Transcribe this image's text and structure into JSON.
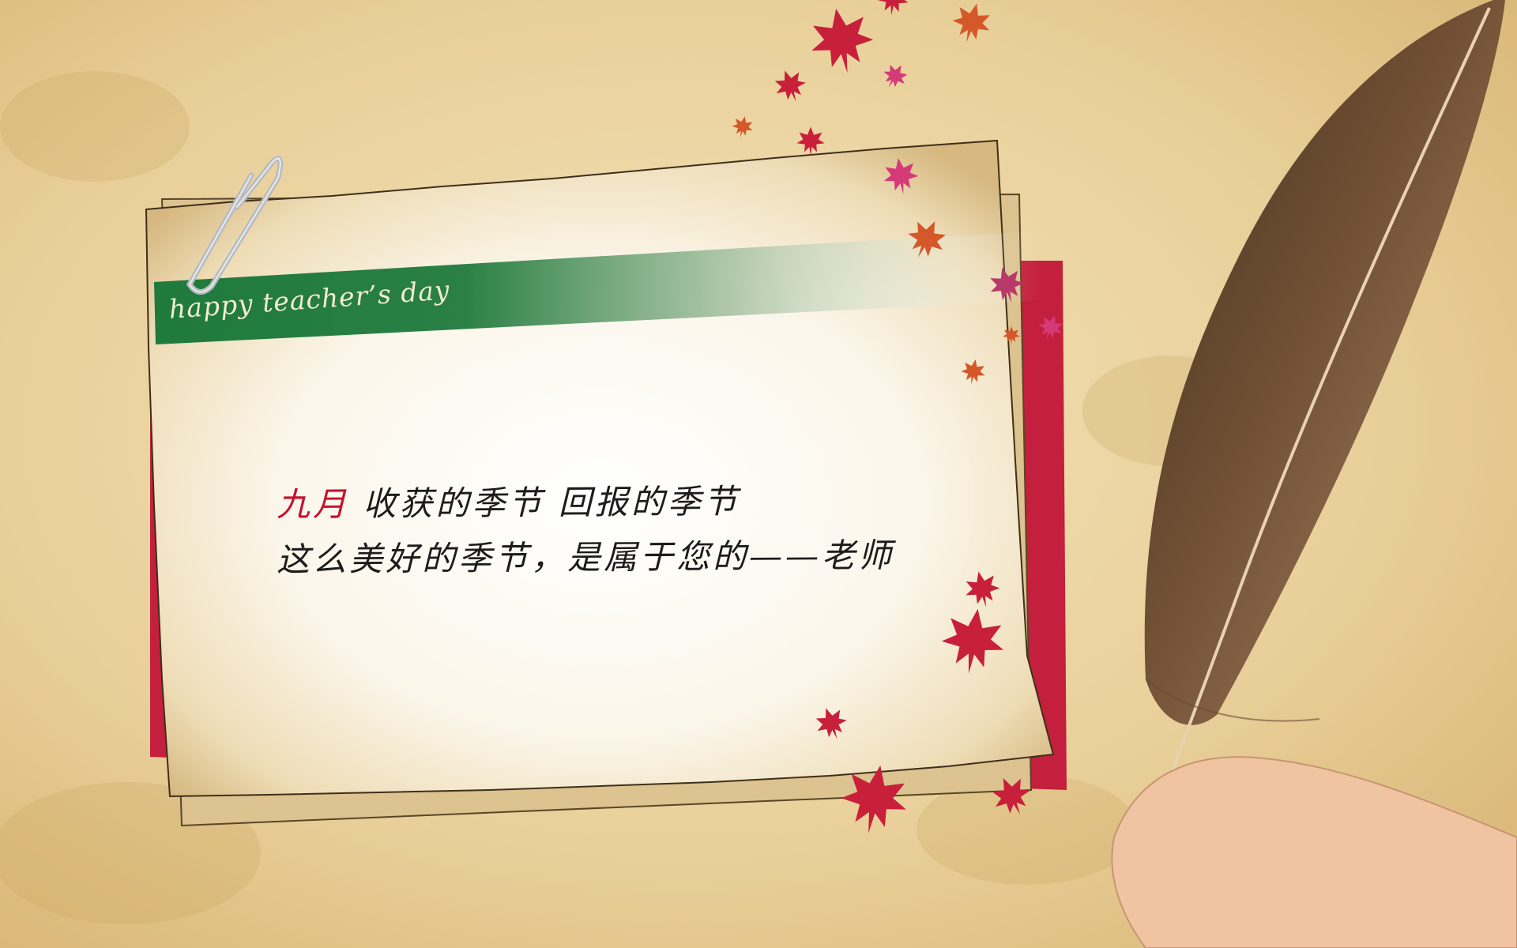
{
  "card": {
    "banner_text": "happy teacher’s day",
    "line1_accent": "九月",
    "line1_rest": " 收获的季节 回报的季节",
    "line2": "这么美好的季节，是属于您的——老师"
  },
  "colors": {
    "background": "#e9d3a0",
    "paper": "#f7efdb",
    "banner_green": "#1f7a3c",
    "backing_red": "#c41f3c",
    "accent_red": "#c8102e",
    "leaf_red": "#c8203a",
    "leaf_orange": "#d4582a",
    "leaf_magenta": "#d43a78",
    "feather_brown": "#6b4a30",
    "skin": "#f0c4a0"
  },
  "icons": {
    "paperclip": "paperclip-icon",
    "leaf": "maple-leaf-icon",
    "feather": "quill-feather-icon",
    "hand": "hand-icon"
  }
}
